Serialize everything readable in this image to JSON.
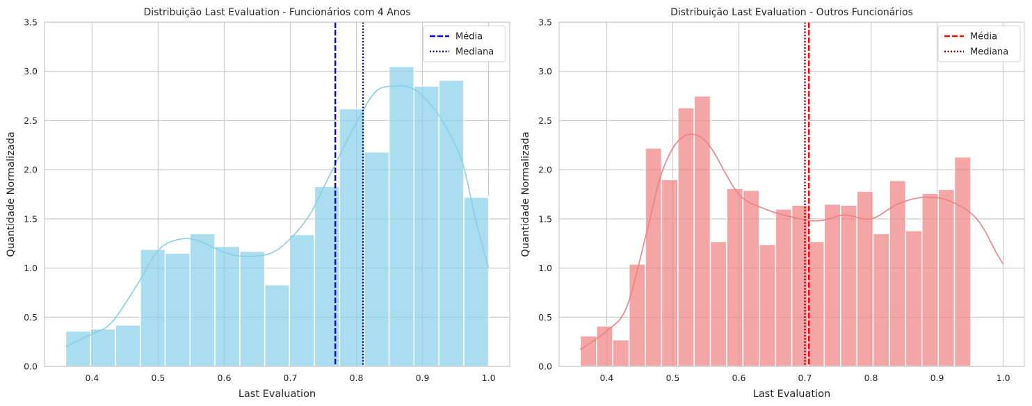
{
  "chart_data": [
    {
      "type": "histogram",
      "title": "Distribuição Last Evaluation - Funcionários com 4 Anos",
      "xlabel": "Last Evaluation",
      "ylabel": "Quantidade Normalizada",
      "xlim": [
        0.328,
        1.032
      ],
      "ylim": [
        0,
        3.5
      ],
      "xticks": [
        0.4,
        0.5,
        0.6,
        0.7,
        0.8,
        0.9,
        1.0
      ],
      "xtick_labels": [
        "0.4",
        "0.5",
        "0.6",
        "0.7",
        "0.8",
        "0.9",
        "1.0"
      ],
      "yticks": [
        0,
        0.5,
        1.0,
        1.5,
        2.0,
        2.5,
        3.0,
        3.5
      ],
      "ytick_labels": [
        "0.0",
        "0.5",
        "1.0",
        "1.5",
        "2.0",
        "2.5",
        "3.0",
        "3.5"
      ],
      "grid": true,
      "legend_position": "top-right",
      "bar_color": "#87ceeb",
      "bins": {
        "start": 0.36,
        "width": 0.03765,
        "values": [
          0.36,
          0.38,
          0.42,
          1.19,
          1.15,
          1.35,
          1.22,
          1.17,
          0.83,
          1.34,
          1.83,
          2.62,
          2.18,
          3.05,
          2.85,
          2.91,
          1.72
        ]
      },
      "kde": {
        "color": "#87ceeb",
        "x": [
          0.36,
          0.4,
          0.43,
          0.47,
          0.5,
          0.53,
          0.56,
          0.6,
          0.63,
          0.67,
          0.7,
          0.73,
          0.76,
          0.8,
          0.83,
          0.86,
          0.88,
          0.9,
          0.93,
          0.96,
          0.98,
          1.0
        ],
        "y": [
          0.2,
          0.33,
          0.45,
          0.85,
          1.18,
          1.29,
          1.28,
          1.16,
          1.12,
          1.15,
          1.3,
          1.55,
          1.95,
          2.48,
          2.8,
          2.85,
          2.84,
          2.75,
          2.5,
          2.08,
          1.5,
          1.0
        ]
      },
      "lines": [
        {
          "name": "Média",
          "value": 0.768,
          "color": "#0000ff",
          "style": "dashed"
        },
        {
          "name": "Mediana",
          "value": 0.81,
          "color": "#00008b",
          "style": "dotted"
        }
      ]
    },
    {
      "type": "histogram",
      "title": "Distribuição Last Evaluation - Outros Funcionários",
      "xlabel": "Last Evaluation",
      "ylabel": "Quantidade Normalizada",
      "xlim": [
        0.328,
        1.032
      ],
      "ylim": [
        0,
        3.5
      ],
      "xticks": [
        0.4,
        0.5,
        0.6,
        0.7,
        0.8,
        0.9,
        1.0
      ],
      "xtick_labels": [
        "0.4",
        "0.5",
        "0.6",
        "0.7",
        "0.8",
        "0.9",
        "1.0"
      ],
      "yticks": [
        0,
        0.5,
        1.0,
        1.5,
        2.0,
        2.5,
        3.0,
        3.5
      ],
      "ytick_labels": [
        "0.0",
        "0.5",
        "1.0",
        "1.5",
        "2.0",
        "2.5",
        "3.0",
        "3.5"
      ],
      "grid": true,
      "legend_position": "top-right",
      "bar_color": "#f08080",
      "bins": {
        "start": 0.36,
        "width": 0.02462,
        "values": [
          0.31,
          0.41,
          0.27,
          1.04,
          2.22,
          1.9,
          2.63,
          2.75,
          1.27,
          1.81,
          1.79,
          1.24,
          1.6,
          1.64,
          1.27,
          1.65,
          1.64,
          1.78,
          1.35,
          1.89,
          1.38,
          1.76,
          1.8,
          2.13
        ]
      },
      "kde": {
        "color": "#f08080",
        "x": [
          0.36,
          0.4,
          0.43,
          0.46,
          0.48,
          0.5,
          0.52,
          0.54,
          0.56,
          0.6,
          0.64,
          0.68,
          0.72,
          0.76,
          0.8,
          0.84,
          0.88,
          0.92,
          0.96,
          0.99,
          1.0
        ],
        "y": [
          0.17,
          0.36,
          0.6,
          1.35,
          1.9,
          2.22,
          2.35,
          2.34,
          2.2,
          1.75,
          1.6,
          1.52,
          1.48,
          1.54,
          1.5,
          1.65,
          1.72,
          1.68,
          1.5,
          1.15,
          1.04
        ]
      },
      "lines": [
        {
          "name": "Média",
          "value": 0.706,
          "color": "#ff0000",
          "style": "dashed"
        },
        {
          "name": "Mediana",
          "value": 0.7,
          "color": "#8b0000",
          "style": "dotted"
        }
      ]
    }
  ]
}
